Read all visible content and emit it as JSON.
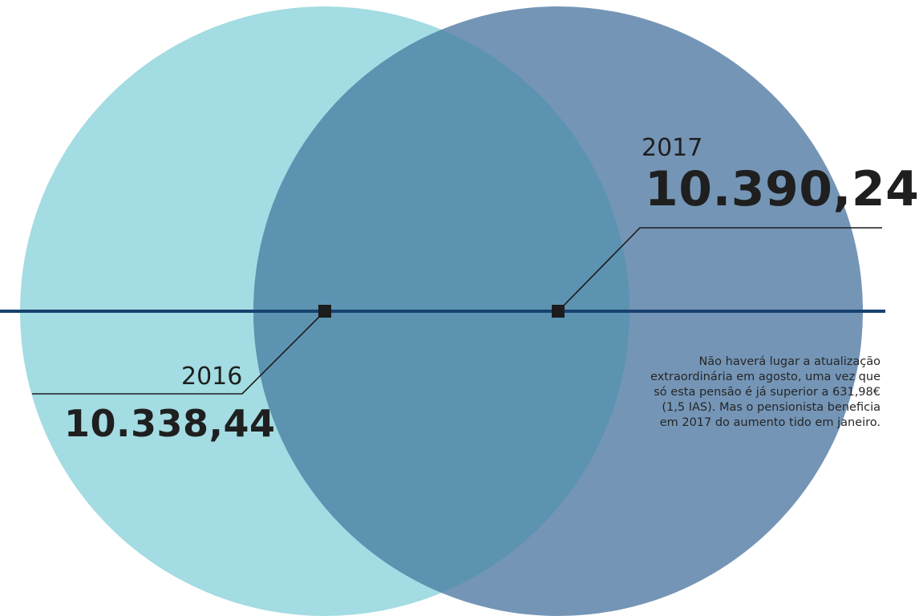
{
  "chart_data": {
    "type": "venn",
    "series": [
      {
        "year": "2016",
        "value": "10.338,44",
        "color": "#a3dce2"
      },
      {
        "year": "2017",
        "value": "10.390,24",
        "color": "#7495b6"
      }
    ],
    "overlap_color": "#5c93b1",
    "axis_line_color": "#17426f",
    "marker_color": "#1c1c1c",
    "annotation": "Não haverá lugar a atualização extraordinária em agosto, uma vez que só esta pensão é já superior a 631,98€ (1,5 IAS). Mas o pensionista beneficia em 2017 do aumento tido em janeiro."
  }
}
